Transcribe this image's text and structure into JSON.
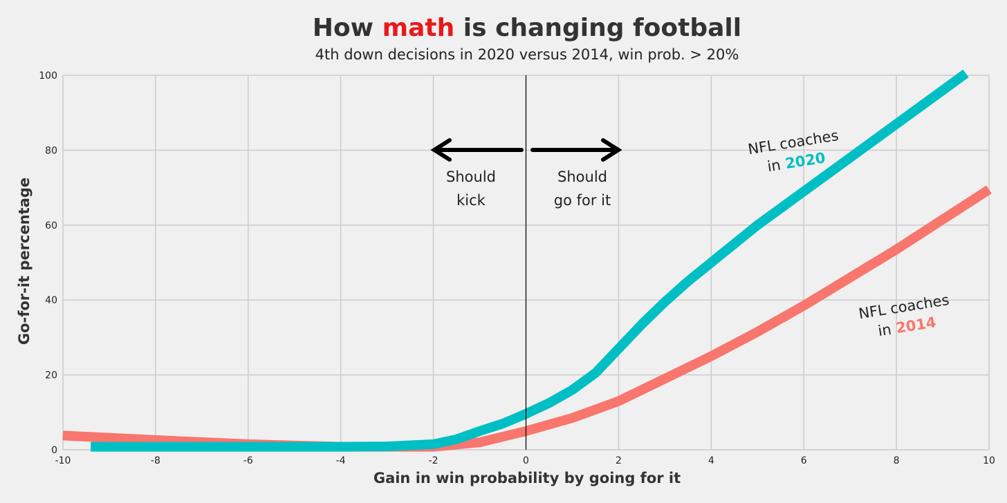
{
  "chart_data": {
    "type": "line",
    "title": [
      "How",
      "math",
      "is changing football"
    ],
    "subtitle": "4th down decisions in 2020 versus 2014, win prob. > 20%",
    "xlabel": "Gain in win probability by going for it",
    "ylabel": "Go-for-it percentage",
    "xlim": [
      -10,
      10
    ],
    "xticks": [
      -10,
      -8,
      -6,
      -4,
      -2,
      0,
      2,
      4,
      6,
      8,
      10
    ],
    "ylim": [
      0,
      100
    ],
    "yticks": [
      0,
      20,
      40,
      60,
      80,
      100
    ],
    "grid": true,
    "vline": 0,
    "annotations": {
      "kick": [
        "Should",
        "kick"
      ],
      "go": [
        "Should",
        "go for it"
      ]
    },
    "series": [
      {
        "name": "2020",
        "label_lines": [
          "NFL coaches",
          "in"
        ],
        "color": "#00bfc4",
        "x": [
          -9.4,
          -8,
          -6,
          -4,
          -3,
          -2,
          -1.5,
          -1,
          -0.5,
          0,
          0.5,
          1,
          1.5,
          2,
          2.5,
          3,
          3.5,
          4,
          5,
          6,
          7,
          8,
          9,
          9.5
        ],
        "values": [
          0.8,
          0.8,
          0.8,
          0.8,
          0.9,
          1.5,
          2.8,
          5,
          7,
          9.6,
          12.5,
          16,
          20.5,
          27,
          33.5,
          39.5,
          45,
          50,
          60,
          69,
          78,
          87,
          96,
          100.5
        ]
      },
      {
        "name": "2014",
        "label_lines": [
          "NFL coaches",
          "in"
        ],
        "color": "#f8766d",
        "x": [
          -10,
          -8,
          -6,
          -4,
          -2,
          -1,
          0,
          1,
          2,
          3,
          4,
          5,
          6,
          7,
          8,
          9,
          10
        ],
        "values": [
          3.8,
          2.6,
          1.5,
          0.8,
          0.8,
          2,
          5,
          8.5,
          13,
          19,
          25,
          31.5,
          38.5,
          46,
          53.5,
          61.5,
          69.5
        ]
      }
    ]
  }
}
